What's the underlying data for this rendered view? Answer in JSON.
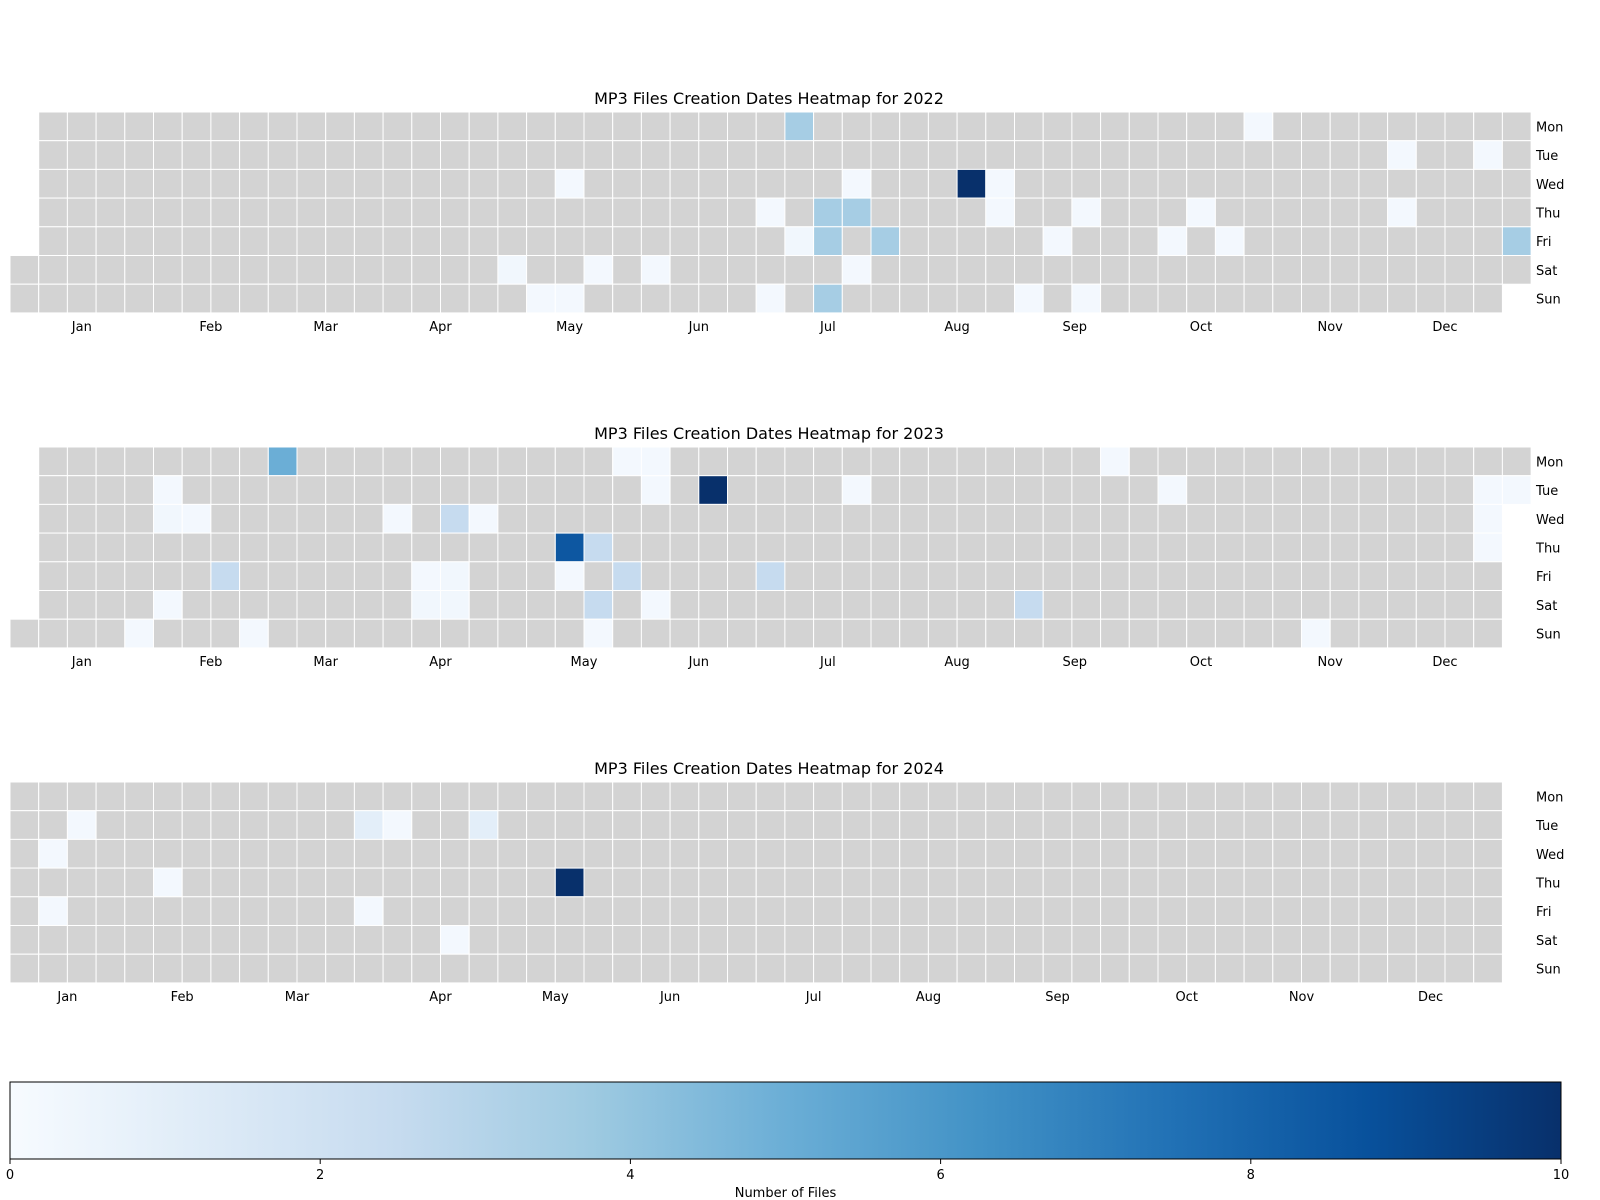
{
  "chart_data": {
    "type": "heatmap",
    "day_labels": [
      "Mon",
      "Tue",
      "Wed",
      "Thu",
      "Fri",
      "Sat",
      "Sun"
    ],
    "value_range": [
      0,
      10
    ],
    "empty_color": "#d3d3d3",
    "grid_color": "#ffffff",
    "colorbar": {
      "label": "Number of Files",
      "ticks": [
        0,
        2,
        4,
        6,
        8,
        10
      ],
      "colors": [
        "#f7fbff",
        "#deebf7",
        "#c6dbef",
        "#9ecae1",
        "#6baed6",
        "#4292c6",
        "#2171b5",
        "#08519c",
        "#08306b"
      ]
    },
    "panels": [
      {
        "title": "MP3 Files Creation Dates Heatmap for 2022",
        "weeks": 53,
        "first_week_start_row": 5,
        "last_week_end_row": 5,
        "month_labels": [
          {
            "label": "Jan",
            "week": 2.5
          },
          {
            "label": "Feb",
            "week": 7
          },
          {
            "label": "Mar",
            "week": 11
          },
          {
            "label": "Apr",
            "week": 15
          },
          {
            "label": "May",
            "week": 19.5
          },
          {
            "label": "Jun",
            "week": 24
          },
          {
            "label": "Jul",
            "week": 28.5
          },
          {
            "label": "Aug",
            "week": 33
          },
          {
            "label": "Sep",
            "week": 37.1
          },
          {
            "label": "Oct",
            "week": 41.5
          },
          {
            "label": "Nov",
            "week": 46
          },
          {
            "label": "Dec",
            "week": 50
          }
        ],
        "cells": [
          [
            17,
            5,
            0.3
          ],
          [
            18,
            6,
            0.2
          ],
          [
            19,
            6,
            0.2
          ],
          [
            20,
            5,
            0.3
          ],
          [
            19,
            2,
            0.2
          ],
          [
            20,
            5,
            0.2
          ],
          [
            22,
            5,
            0.2
          ],
          [
            26,
            3,
            0.2
          ],
          [
            26,
            6,
            0.2
          ],
          [
            27,
            4,
            0.3
          ],
          [
            27,
            0,
            3.5
          ],
          [
            28,
            3,
            3.5
          ],
          [
            28,
            4,
            3.5
          ],
          [
            28,
            6,
            3.5
          ],
          [
            29,
            3,
            3.5
          ],
          [
            29,
            2,
            0.2
          ],
          [
            29,
            5,
            0.2
          ],
          [
            30,
            4,
            3.5
          ],
          [
            33,
            2,
            10
          ],
          [
            34,
            2,
            0.2
          ],
          [
            34,
            3,
            0.2
          ],
          [
            35,
            6,
            0.2
          ],
          [
            36,
            4,
            0.2
          ],
          [
            37,
            3,
            0.2
          ],
          [
            37,
            6,
            0.2
          ],
          [
            40,
            4,
            0.2
          ],
          [
            41,
            3,
            0.2
          ],
          [
            42,
            4,
            0.2
          ],
          [
            43,
            0,
            0.2
          ],
          [
            48,
            1,
            0.2
          ],
          [
            48,
            3,
            0.2
          ],
          [
            51,
            1,
            0.2
          ],
          [
            52,
            4,
            3.5
          ]
        ]
      },
      {
        "title": "MP3 Files Creation Dates Heatmap for 2023",
        "weeks": 53,
        "first_week_start_row": 6,
        "last_week_end_row": 1,
        "month_labels": [
          {
            "label": "Jan",
            "week": 2.5
          },
          {
            "label": "Feb",
            "week": 7
          },
          {
            "label": "Mar",
            "week": 11
          },
          {
            "label": "Apr",
            "week": 15
          },
          {
            "label": "May",
            "week": 20
          },
          {
            "label": "Jun",
            "week": 24
          },
          {
            "label": "Jul",
            "week": 28.5
          },
          {
            "label": "Aug",
            "week": 33
          },
          {
            "label": "Sep",
            "week": 37.1
          },
          {
            "label": "Oct",
            "week": 41.5
          },
          {
            "label": "Nov",
            "week": 46
          },
          {
            "label": "Dec",
            "week": 50
          }
        ],
        "cells": [
          [
            9,
            0,
            5
          ],
          [
            5,
            1,
            0.2
          ],
          [
            5,
            2,
            0.3
          ],
          [
            6,
            2,
            0.2
          ],
          [
            5,
            5,
            0.2
          ],
          [
            4,
            6,
            0.2
          ],
          [
            8,
            6,
            0.2
          ],
          [
            7,
            4,
            2.5
          ],
          [
            13,
            2,
            0.2
          ],
          [
            15,
            2,
            2.5
          ],
          [
            16,
            2,
            0.2
          ],
          [
            14,
            4,
            0.2
          ],
          [
            15,
            4,
            0.3
          ],
          [
            14,
            5,
            0.3
          ],
          [
            15,
            5,
            0.3
          ],
          [
            19,
            3,
            8.5
          ],
          [
            20,
            3,
            2.5
          ],
          [
            19,
            4,
            0.2
          ],
          [
            21,
            4,
            2.5
          ],
          [
            20,
            5,
            2.5
          ],
          [
            22,
            5,
            0.2
          ],
          [
            20,
            6,
            0.2
          ],
          [
            21,
            0,
            0.2
          ],
          [
            22,
            0,
            0.2
          ],
          [
            22,
            1,
            0.2
          ],
          [
            24,
            1,
            10
          ],
          [
            26,
            4,
            2.5
          ],
          [
            29,
            1,
            0.2
          ],
          [
            35,
            5,
            2.5
          ],
          [
            38,
            0,
            0.2
          ],
          [
            40,
            1,
            0.2
          ],
          [
            45,
            6,
            0.2
          ],
          [
            51,
            1,
            0.2
          ],
          [
            52,
            1,
            0.2
          ],
          [
            51,
            2,
            0.2
          ],
          [
            51,
            3,
            0.2
          ]
        ]
      },
      {
        "title": "MP3 Files Creation Dates Heatmap for 2024",
        "weeks": 52,
        "first_week_start_row": 0,
        "last_week_end_row": 6,
        "month_labels": [
          {
            "label": "Jan",
            "week": 2
          },
          {
            "label": "Feb",
            "week": 6
          },
          {
            "label": "Mar",
            "week": 10
          },
          {
            "label": "Apr",
            "week": 15
          },
          {
            "label": "May",
            "week": 19
          },
          {
            "label": "Jun",
            "week": 23
          },
          {
            "label": "Jul",
            "week": 28
          },
          {
            "label": "Aug",
            "week": 32
          },
          {
            "label": "Sep",
            "week": 36.5
          },
          {
            "label": "Oct",
            "week": 41
          },
          {
            "label": "Nov",
            "week": 45
          },
          {
            "label": "Dec",
            "week": 49.5
          }
        ],
        "cells": [
          [
            2,
            1,
            0.2
          ],
          [
            1,
            2,
            0.2
          ],
          [
            5,
            3,
            0.2
          ],
          [
            1,
            4,
            0.2
          ],
          [
            12,
            1,
            1
          ],
          [
            13,
            1,
            0.2
          ],
          [
            16,
            1,
            1
          ],
          [
            12,
            4,
            0.2
          ],
          [
            15,
            5,
            0.2
          ],
          [
            19,
            3,
            10
          ]
        ]
      }
    ]
  }
}
